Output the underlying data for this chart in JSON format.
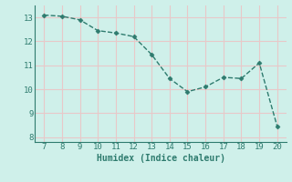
{
  "x": [
    7,
    8,
    9,
    10,
    11,
    12,
    13,
    14,
    15,
    16,
    17,
    18,
    19,
    20
  ],
  "y": [
    13.1,
    13.05,
    12.9,
    12.45,
    12.35,
    12.2,
    11.45,
    10.45,
    9.9,
    10.1,
    10.5,
    10.45,
    11.1,
    8.45
  ],
  "line_color": "#2e7b6e",
  "marker": "D",
  "marker_size": 2.5,
  "xlabel": "Humidex (Indice chaleur)",
  "xlim": [
    6.5,
    20.5
  ],
  "ylim": [
    7.8,
    13.5
  ],
  "xticks": [
    7,
    8,
    9,
    10,
    11,
    12,
    13,
    14,
    15,
    16,
    17,
    18,
    19,
    20
  ],
  "yticks": [
    8,
    9,
    10,
    11,
    12,
    13
  ],
  "bg_color": "#cff0ea",
  "grid_color": "#e8c8c8",
  "label_fontsize": 7,
  "tick_fontsize": 6.5,
  "linewidth": 1.0
}
